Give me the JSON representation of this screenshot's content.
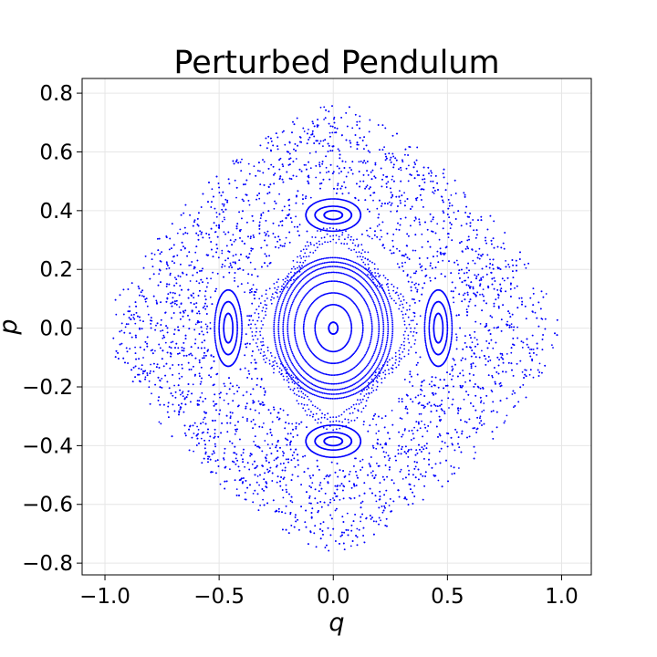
{
  "chart_data": {
    "type": "scatter",
    "title": "Perturbed Pendulum",
    "xlabel": "q",
    "ylabel": "p",
    "xlim": [
      -1.1,
      1.13
    ],
    "ylim": [
      -0.84,
      0.85
    ],
    "xticks": [
      -1.0,
      -0.5,
      0.0,
      0.5,
      1.0
    ],
    "xtick_labels": [
      "−1.0",
      "−0.5",
      "0.0",
      "0.5",
      "1.0"
    ],
    "yticks": [
      -0.8,
      -0.6,
      -0.4,
      -0.2,
      0.0,
      0.2,
      0.4,
      0.6,
      0.8
    ],
    "ytick_labels": [
      "−0.8",
      "−0.6",
      "−0.4",
      "−0.2",
      "0.0",
      "0.2",
      "0.4",
      "0.6",
      "0.8"
    ],
    "grid": true,
    "marker_color": "#0000ff",
    "series": [
      {
        "description": "Poincare section: concentric invariant curves around (0,0), 4 secondary islands at (±0.46,0) and (0,±0.38), chaotic sea out to |q|+|p|≈0.85",
        "center_curves_semi_axes": [
          [
            0.02,
            0.02
          ],
          [
            0.08,
            0.08
          ],
          [
            0.13,
            0.12
          ],
          [
            0.17,
            0.16
          ],
          [
            0.2,
            0.19
          ],
          [
            0.22,
            0.21
          ],
          [
            0.24,
            0.225
          ],
          [
            0.26,
            0.24
          ]
        ],
        "side_islands": [
          {
            "center": [
              -0.46,
              0.0
            ],
            "semi_axes": [
              [
                0.02,
                0.05
              ],
              [
                0.04,
                0.09
              ],
              [
                0.06,
                0.13
              ]
            ]
          },
          {
            "center": [
              0.46,
              0.0
            ],
            "semi_axes": [
              [
                0.02,
                0.05
              ],
              [
                0.04,
                0.09
              ],
              [
                0.06,
                0.13
              ]
            ]
          },
          {
            "center": [
              0.0,
              0.385
            ],
            "semi_axes": [
              [
                0.04,
                0.015
              ],
              [
                0.08,
                0.03
              ],
              [
                0.12,
                0.055
              ]
            ]
          },
          {
            "center": [
              0.0,
              -0.385
            ],
            "semi_axes": [
              [
                0.04,
                0.015
              ],
              [
                0.08,
                0.03
              ],
              [
                0.12,
                0.055
              ]
            ]
          }
        ],
        "chaotic_outer_extent": [
          [
            1.0,
            0.0
          ],
          [
            0.0,
            0.77
          ]
        ]
      }
    ]
  }
}
